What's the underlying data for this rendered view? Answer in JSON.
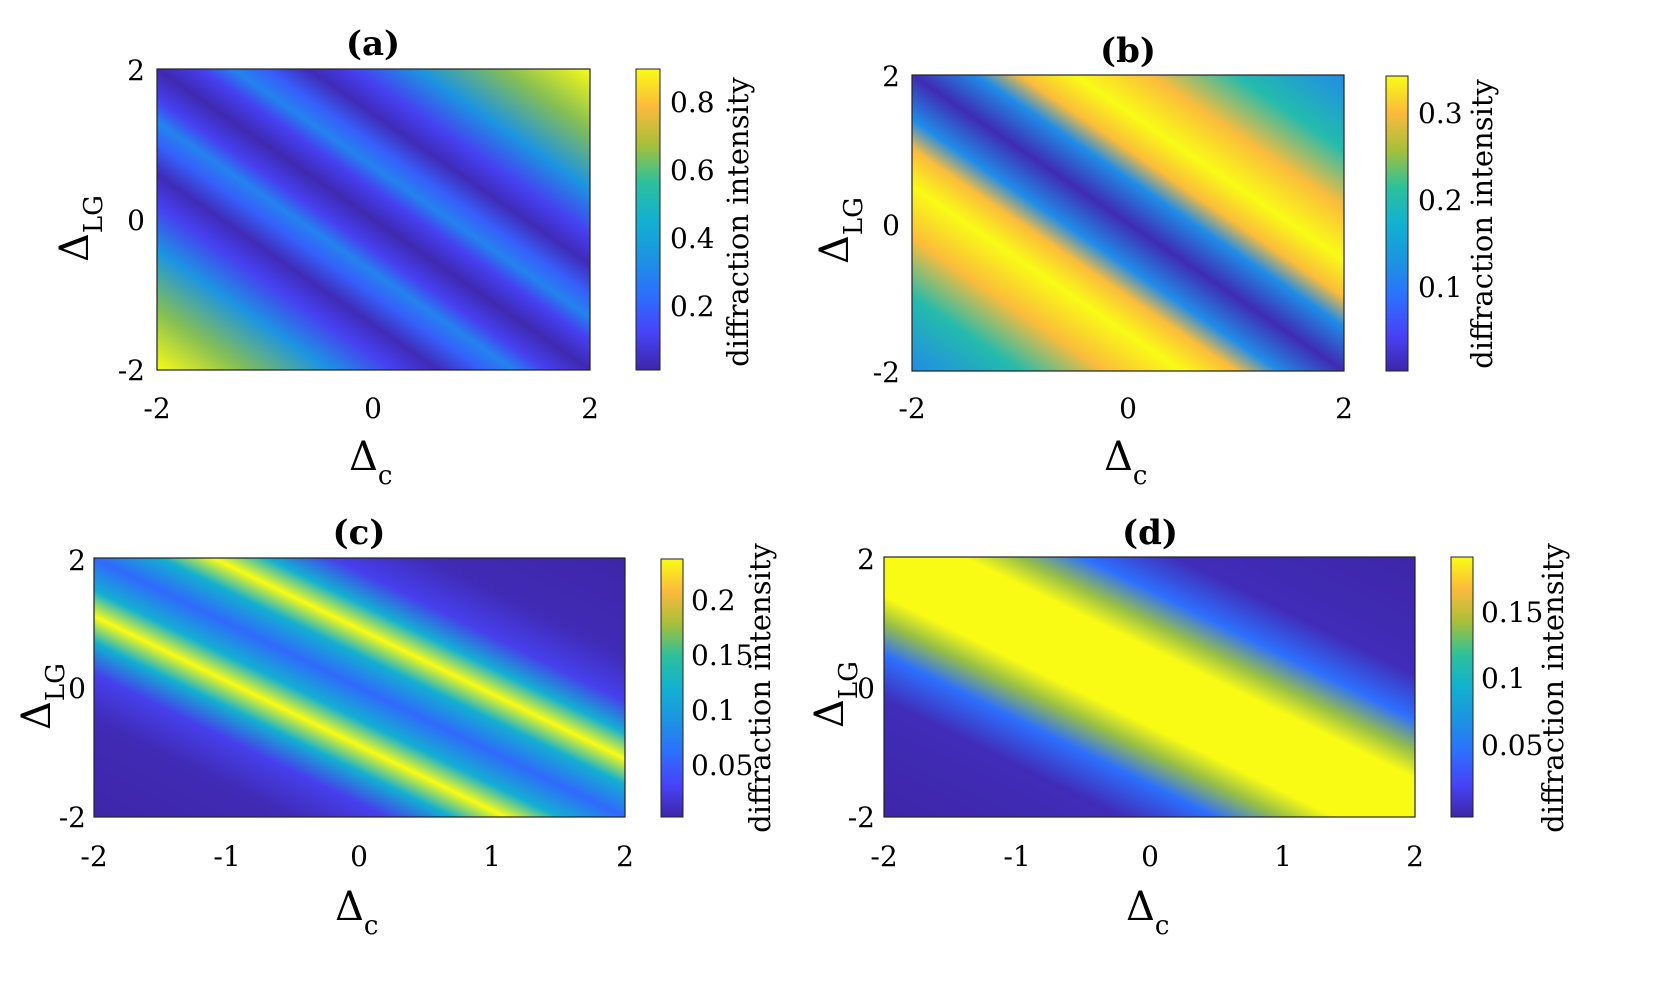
{
  "figure": {
    "panels": [
      {
        "title": "(a)",
        "x_symbol": "Δ",
        "x_sub": "c",
        "y_symbol": "Δ",
        "y_sub": "LG",
        "x_ticks": [
          "-2",
          "0",
          "2"
        ],
        "y_ticks": [
          "2",
          "0",
          "-2"
        ],
        "colorbar": {
          "label": "diffraction intensity",
          "ticks": [
            "0.8",
            "0.6",
            "0.4",
            "0.2"
          ]
        }
      },
      {
        "title": "(b)",
        "x_symbol": "Δ",
        "x_sub": "c",
        "y_symbol": "Δ",
        "y_sub": "LG",
        "x_ticks": [
          "-2",
          "0",
          "2"
        ],
        "y_ticks": [
          "2",
          "0",
          "-2"
        ],
        "colorbar": {
          "label": "diffraction intensity",
          "ticks": [
            "0.3",
            "0.2",
            "0.1"
          ]
        }
      },
      {
        "title": "(c)",
        "x_symbol": "Δ",
        "x_sub": "c",
        "y_symbol": "Δ",
        "y_sub": "LG",
        "x_ticks": [
          "-2",
          "-1",
          "0",
          "1",
          "2"
        ],
        "y_ticks": [
          "2",
          "0",
          "-2"
        ],
        "colorbar": {
          "label": "diffraction intensity",
          "ticks": [
            "0.2",
            "0.15",
            "0.1",
            "0.05"
          ]
        }
      },
      {
        "title": "(d)",
        "x_symbol": "Δ",
        "x_sub": "c",
        "y_symbol": "Δ",
        "y_sub": "LG",
        "x_ticks": [
          "-2",
          "-1",
          "0",
          "1",
          "2"
        ],
        "y_ticks": [
          "2",
          "0",
          "-2"
        ],
        "colorbar": {
          "label": "diffraction intensity",
          "ticks": [
            "0.15",
            "0.1",
            "0.05"
          ]
        }
      }
    ]
  },
  "chart_data": [
    {
      "type": "heatmap",
      "title": "(a)",
      "xlabel": "Δc",
      "ylabel": "ΔLG",
      "xlim": [
        -2,
        2
      ],
      "ylim": [
        -2,
        2
      ],
      "x_ticks": [
        -2,
        0,
        2
      ],
      "y_ticks": [
        -2,
        0,
        2
      ],
      "colorbar_label": "diffraction intensity",
      "color_range": [
        0.02,
        0.9
      ],
      "colorbar_ticks": [
        0.2,
        0.4,
        0.6,
        0.8
      ],
      "colormap": "parula",
      "description_values": {
        "diagonal_axis": "Δc + ΔLG",
        "profile": [
          [
            -4,
            0.9
          ],
          [
            -3.2,
            0.65
          ],
          [
            -2.4,
            0.35
          ],
          [
            -1.8,
            0.12
          ],
          [
            -1.4,
            0.04
          ],
          [
            -1.0,
            0.2
          ],
          [
            -0.7,
            0.3
          ],
          [
            -0.4,
            0.12
          ],
          [
            0,
            0.03
          ],
          [
            0.4,
            0.12
          ],
          [
            0.7,
            0.3
          ],
          [
            1.0,
            0.2
          ],
          [
            1.4,
            0.04
          ],
          [
            1.8,
            0.12
          ],
          [
            2.4,
            0.35
          ],
          [
            3.2,
            0.65
          ],
          [
            4,
            0.9
          ]
        ]
      }
    },
    {
      "type": "heatmap",
      "title": "(b)",
      "xlabel": "Δc",
      "ylabel": "ΔLG",
      "xlim": [
        -2,
        2
      ],
      "ylim": [
        -2,
        2
      ],
      "x_ticks": [
        -2,
        0,
        2
      ],
      "y_ticks": [
        -2,
        0,
        2
      ],
      "colorbar_label": "diffraction intensity",
      "color_range": [
        0.003,
        0.34
      ],
      "colorbar_ticks": [
        0.1,
        0.2,
        0.3
      ],
      "colormap": "parula",
      "description_values": {
        "diagonal_axis": "Δc + ΔLG",
        "profile": [
          [
            -4,
            0.12
          ],
          [
            -3,
            0.2
          ],
          [
            -2.2,
            0.3
          ],
          [
            -1.5,
            0.34
          ],
          [
            -1.0,
            0.3
          ],
          [
            -0.6,
            0.12
          ],
          [
            0,
            0.01
          ],
          [
            0.6,
            0.12
          ],
          [
            1.0,
            0.3
          ],
          [
            1.5,
            0.34
          ],
          [
            2.2,
            0.3
          ],
          [
            3,
            0.2
          ],
          [
            4,
            0.12
          ]
        ]
      }
    },
    {
      "type": "heatmap",
      "title": "(c)",
      "xlabel": "Δc",
      "ylabel": "ΔLG",
      "xlim": [
        -2,
        2
      ],
      "ylim": [
        -2,
        2
      ],
      "x_ticks": [
        -2,
        -1,
        0,
        1,
        2
      ],
      "y_ticks": [
        -2,
        0,
        2
      ],
      "colorbar_label": "diffraction intensity",
      "color_range": [
        0.005,
        0.24
      ],
      "colorbar_ticks": [
        0.05,
        0.1,
        0.15,
        0.2
      ],
      "colormap": "parula",
      "description_values": {
        "diagonal_axis": "Δc + ΔLG",
        "profile": [
          [
            -4,
            0.005
          ],
          [
            -2.5,
            0.01
          ],
          [
            -1.8,
            0.03
          ],
          [
            -1.3,
            0.12
          ],
          [
            -0.9,
            0.24
          ],
          [
            -0.5,
            0.12
          ],
          [
            0,
            0.06
          ],
          [
            0.5,
            0.12
          ],
          [
            0.9,
            0.24
          ],
          [
            1.3,
            0.12
          ],
          [
            1.8,
            0.03
          ],
          [
            2.5,
            0.01
          ],
          [
            4,
            0.005
          ]
        ]
      }
    },
    {
      "type": "heatmap",
      "title": "(d)",
      "xlabel": "Δc",
      "ylabel": "ΔLG",
      "xlim": [
        -2,
        2
      ],
      "ylim": [
        -2,
        2
      ],
      "x_ticks": [
        -2,
        -1,
        0,
        1,
        2
      ],
      "y_ticks": [
        -2,
        0,
        2
      ],
      "colorbar_label": "diffraction intensity",
      "color_range": [
        0.003,
        0.19
      ],
      "colorbar_ticks": [
        0.05,
        0.1,
        0.15
      ],
      "colormap": "parula",
      "description_values": {
        "diagonal_axis": "Δc + ΔLG",
        "profile": [
          [
            -4,
            0.003
          ],
          [
            -2.2,
            0.008
          ],
          [
            -1.5,
            0.05
          ],
          [
            -1.0,
            0.14
          ],
          [
            -0.6,
            0.19
          ],
          [
            0,
            0.19
          ],
          [
            0.6,
            0.19
          ],
          [
            1.0,
            0.14
          ],
          [
            1.5,
            0.05
          ],
          [
            2.2,
            0.008
          ],
          [
            4,
            0.003
          ]
        ]
      }
    }
  ]
}
